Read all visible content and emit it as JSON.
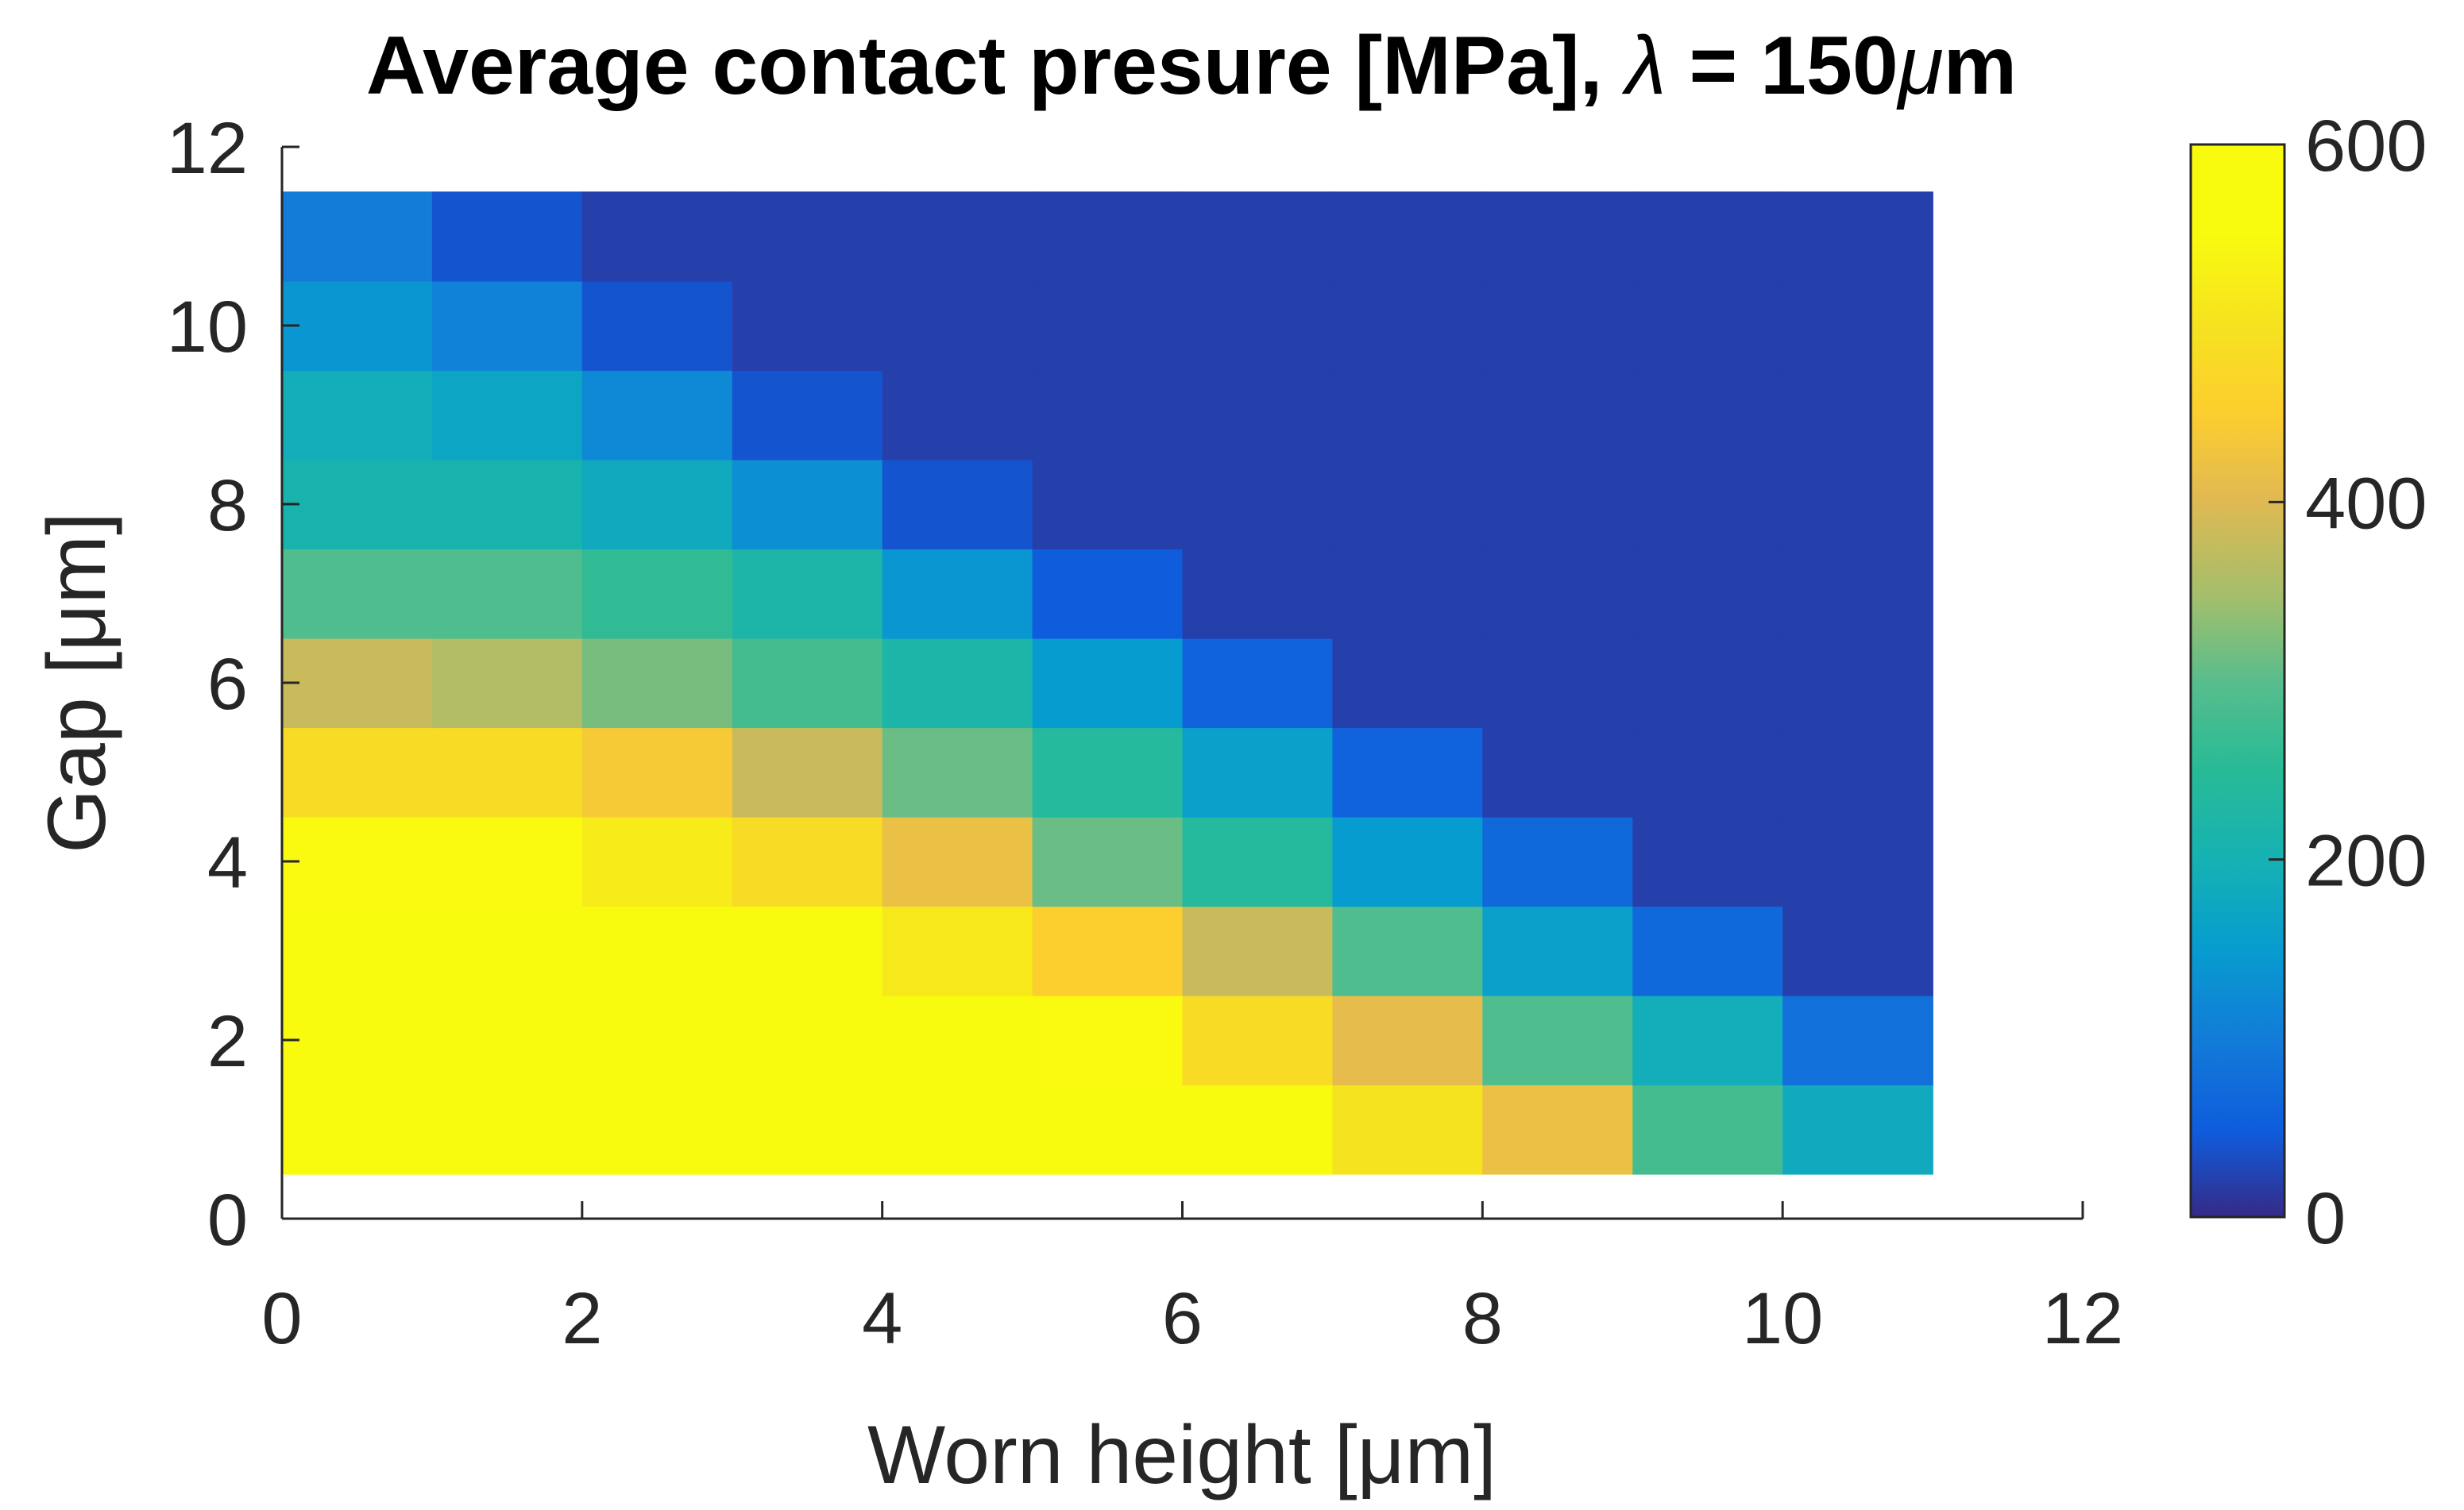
{
  "chart_data": {
    "type": "heatmap",
    "title": "Average contact presure [MPa], λ = 150μm",
    "title_parts": {
      "main": "Average contact presure [MPa], ",
      "symbol": "λ",
      "rest": " = 150",
      "unit_symbol": "μ",
      "unit": "m"
    },
    "xlabel": "Worn height [μm]",
    "ylabel": "Gap [μm]",
    "xlim": [
      0,
      12
    ],
    "ylim": [
      0,
      12
    ],
    "xticks": [
      "0",
      "2",
      "4",
      "6",
      "8",
      "10",
      "12"
    ],
    "yticks": [
      "0",
      "2",
      "4",
      "6",
      "8",
      "10",
      "12"
    ],
    "x_centers": [
      0.5,
      1.5,
      2.5,
      3.5,
      4.5,
      5.5,
      6.5,
      7.5,
      8.5,
      9.5,
      10.5
    ],
    "y_centers": [
      1,
      2,
      3,
      4,
      5,
      6,
      7,
      8,
      9,
      10,
      11
    ],
    "values": [
      [
        600,
        600,
        600,
        600,
        600,
        600,
        560,
        500,
        420,
        280,
        180
      ],
      [
        600,
        600,
        600,
        600,
        600,
        550,
        480,
        410,
        290,
        190,
        80
      ],
      [
        600,
        600,
        580,
        560,
        510,
        450,
        380,
        290,
        160,
        70,
        20
      ],
      [
        550,
        550,
        520,
        480,
        420,
        310,
        240,
        150,
        70,
        20,
        20
      ],
      [
        480,
        480,
        440,
        380,
        310,
        240,
        160,
        60,
        20,
        20,
        20
      ],
      [
        380,
        360,
        320,
        280,
        220,
        150,
        60,
        20,
        20,
        20,
        20
      ],
      [
        290,
        290,
        260,
        220,
        140,
        50,
        20,
        20,
        20,
        20,
        20
      ],
      [
        210,
        210,
        180,
        130,
        40,
        20,
        20,
        20,
        20,
        20,
        20
      ],
      [
        190,
        170,
        120,
        40,
        20,
        20,
        20,
        20,
        20,
        20,
        20
      ],
      [
        140,
        110,
        40,
        20,
        20,
        20,
        20,
        20,
        20,
        20,
        20
      ],
      [
        100,
        40,
        20,
        20,
        20,
        20,
        20,
        20,
        20,
        20,
        20
      ]
    ],
    "colorbar": {
      "clim": [
        0,
        600
      ],
      "ticks": [
        "0",
        "200",
        "400",
        "600"
      ],
      "colormap": "parula"
    }
  }
}
